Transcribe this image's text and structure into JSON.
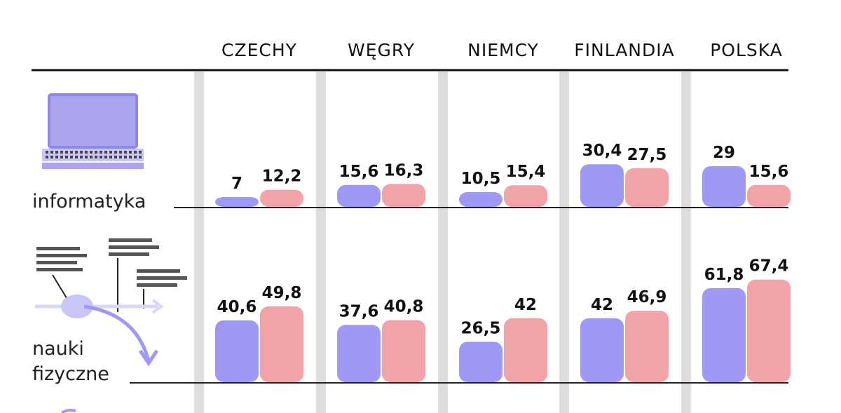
{
  "chart_data": {
    "type": "bar",
    "categories": [
      "CZECHY",
      "WĘGRY",
      "NIEMCY",
      "FINLANDIA",
      "POLSKA"
    ],
    "colors": {
      "series_a": "#9f99f5",
      "series_b": "#f2a3a8",
      "column_band": "#dedede",
      "icon": "#a9a3f0"
    },
    "panels": [
      {
        "label": "informatyka",
        "icon": "laptop-icon",
        "series": [
          {
            "values": [
              7,
              15.6,
              10.5,
              30.4,
              29
            ]
          },
          {
            "values": [
              12.2,
              16.3,
              15.4,
              27.5,
              15.6
            ]
          }
        ],
        "value_labels": [
          [
            "7",
            "15,6",
            "10,5",
            "30,4",
            "29"
          ],
          [
            "12,2",
            "16,3",
            "15,4",
            "27,5",
            "15,6"
          ]
        ]
      },
      {
        "label_lines": [
          "nauki",
          "fizyczne"
        ],
        "icon": "physics-diagram-icon",
        "series": [
          {
            "values": [
              40.6,
              37.6,
              26.5,
              42,
              61.8
            ]
          },
          {
            "values": [
              49.8,
              40.8,
              42,
              46.9,
              67.4
            ]
          }
        ],
        "value_labels": [
          [
            "40,6",
            "37,6",
            "26,5",
            "42",
            "61,8"
          ],
          [
            "49,8",
            "40,8",
            "42",
            "46,9",
            "67,4"
          ]
        ]
      }
    ]
  }
}
